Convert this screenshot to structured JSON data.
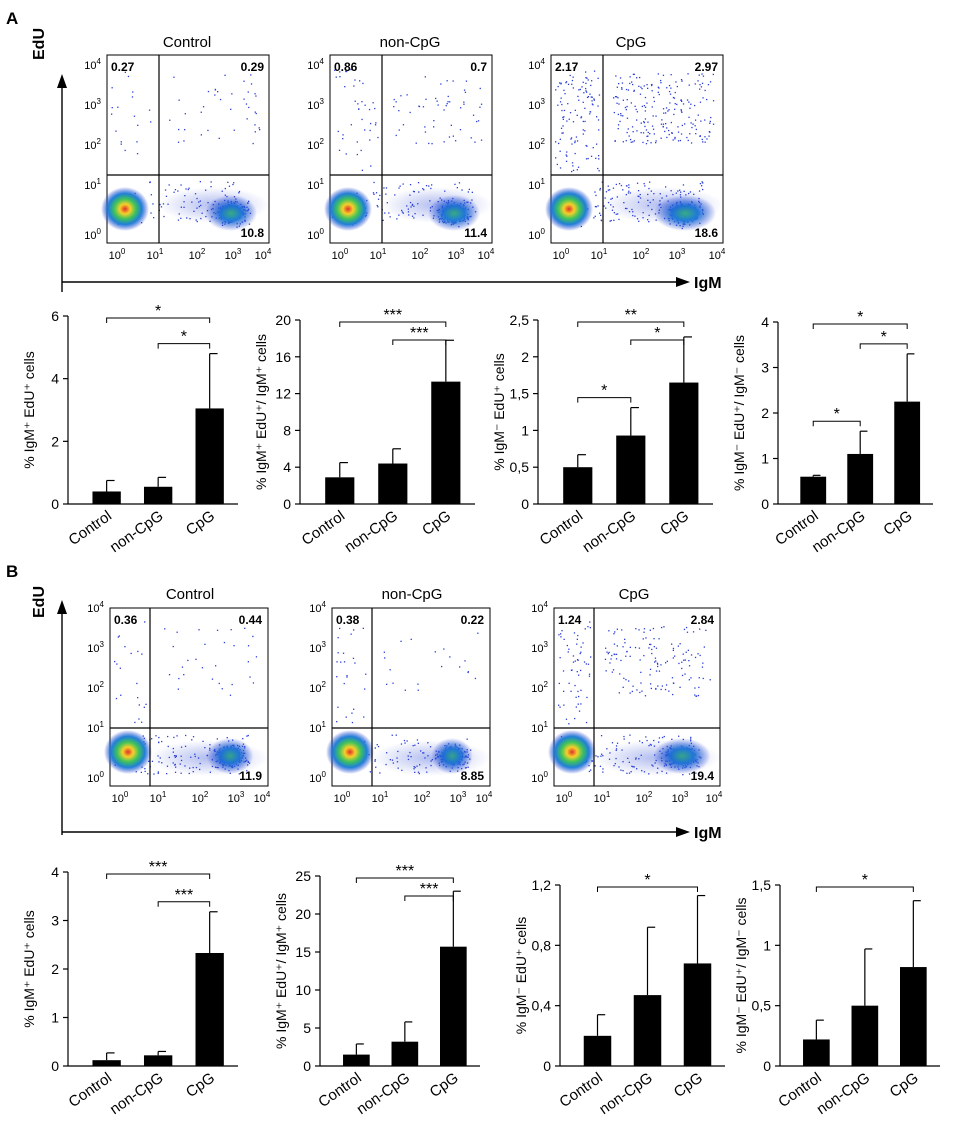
{
  "panels": [
    {
      "label": "A",
      "flow": {
        "ylabel": "EdU",
        "xlabel": "IgM",
        "ticks": [
          "10^0",
          "10^1",
          "10^2",
          "10^3",
          "10^4"
        ],
        "plots": [
          {
            "title": "Control",
            "quadrants": {
              "ul": "0.27",
              "ur": "0.29",
              "lr": "10.8"
            }
          },
          {
            "title": "non-CpG",
            "quadrants": {
              "ul": "0.86",
              "ur": "0.7",
              "lr": "11.4"
            }
          },
          {
            "title": "CpG",
            "quadrants": {
              "ul": "2.17",
              "ur": "2.97",
              "lr": "18.6"
            }
          }
        ]
      },
      "bars": [
        {
          "type": "bar",
          "ylabel": "% IgM⁺ EdU⁺ cells",
          "categories": [
            "Control",
            "non-CpG",
            "CpG"
          ],
          "values": [
            0.4,
            0.55,
            3.05
          ],
          "errors": [
            0.35,
            0.3,
            1.75
          ],
          "ylim": [
            0,
            6
          ],
          "yticks": [
            "0",
            "2",
            "4",
            "6"
          ],
          "sig": [
            {
              "from": 0,
              "to": 2,
              "stars": "*"
            },
            {
              "from": 1,
              "to": 2,
              "stars": "*"
            }
          ]
        },
        {
          "type": "bar",
          "ylabel": "% IgM⁺ EdU⁺/ IgM⁺ cells",
          "categories": [
            "Control",
            "non-CpG",
            "CpG"
          ],
          "values": [
            2.9,
            4.4,
            13.3
          ],
          "errors": [
            1.6,
            1.6,
            4.5
          ],
          "ylim": [
            0,
            20
          ],
          "yticks": [
            "0",
            "4",
            "8",
            "12",
            "16",
            "20"
          ],
          "sig": [
            {
              "from": 0,
              "to": 2,
              "stars": "***"
            },
            {
              "from": 1,
              "to": 2,
              "stars": "***"
            }
          ]
        },
        {
          "type": "bar",
          "ylabel": "% IgM⁻ EdU⁺ cells",
          "categories": [
            "Control",
            "non-CpG",
            "CpG"
          ],
          "values": [
            0.5,
            0.93,
            1.65
          ],
          "errors": [
            0.17,
            0.38,
            0.62
          ],
          "ylim": [
            0,
            2.5
          ],
          "yticks": [
            "0",
            "0,5",
            "1",
            "1,5",
            "2",
            "2,5"
          ],
          "sig": [
            {
              "from": 0,
              "to": 2,
              "stars": "**"
            },
            {
              "from": 0,
              "to": 1,
              "stars": "*"
            },
            {
              "from": 1,
              "to": 2,
              "stars": "*"
            }
          ]
        },
        {
          "type": "bar",
          "ylabel": "% IgM⁻ EdU⁺/ IgM⁻ cells",
          "categories": [
            "Control",
            "non-CpG",
            "CpG"
          ],
          "values": [
            0.6,
            1.1,
            2.25
          ],
          "errors": [
            0.03,
            0.5,
            1.05
          ],
          "ylim": [
            0,
            4
          ],
          "yticks": [
            "0",
            "1",
            "2",
            "3",
            "4"
          ],
          "sig": [
            {
              "from": 0,
              "to": 2,
              "stars": "*"
            },
            {
              "from": 0,
              "to": 1,
              "stars": "*"
            },
            {
              "from": 1,
              "to": 2,
              "stars": "*"
            }
          ]
        }
      ]
    },
    {
      "label": "B",
      "flow": {
        "ylabel": "EdU",
        "xlabel": "IgM",
        "ticks": [
          "10^0",
          "10^1",
          "10^2",
          "10^3",
          "10^4"
        ],
        "plots": [
          {
            "title": "Control",
            "quadrants": {
              "ul": "0.36",
              "ur": "0.44",
              "lr": "11.9"
            }
          },
          {
            "title": "non-CpG",
            "quadrants": {
              "ul": "0.38",
              "ur": "0.22",
              "lr": "8.85"
            }
          },
          {
            "title": "CpG",
            "quadrants": {
              "ul": "1.24",
              "ur": "2.84",
              "lr": "19.4"
            }
          }
        ]
      },
      "bars": [
        {
          "type": "bar",
          "ylabel": "% IgM⁺ EdU⁺ cells",
          "categories": [
            "Control",
            "non-CpG",
            "CpG"
          ],
          "values": [
            0.12,
            0.22,
            2.33
          ],
          "errors": [
            0.15,
            0.08,
            0.85
          ],
          "ylim": [
            0,
            4
          ],
          "yticks": [
            "0",
            "1",
            "2",
            "3",
            "4"
          ],
          "sig": [
            {
              "from": 0,
              "to": 2,
              "stars": "***"
            },
            {
              "from": 1,
              "to": 2,
              "stars": "***"
            }
          ]
        },
        {
          "type": "bar",
          "ylabel": "% IgM⁺ EdU⁺/ IgM⁺ cells",
          "categories": [
            "Control",
            "non-CpG",
            "CpG"
          ],
          "values": [
            1.5,
            3.2,
            15.7
          ],
          "errors": [
            1.4,
            2.6,
            7.3
          ],
          "ylim": [
            0,
            25
          ],
          "yticks": [
            "0",
            "5",
            "10",
            "15",
            "20",
            "25"
          ],
          "sig": [
            {
              "from": 0,
              "to": 2,
              "stars": "***"
            },
            {
              "from": 1,
              "to": 2,
              "stars": "***"
            }
          ]
        },
        {
          "type": "bar",
          "ylabel": "% IgM⁻ EdU⁺ cells",
          "categories": [
            "Control",
            "non-CpG",
            "CpG"
          ],
          "values": [
            0.2,
            0.47,
            0.68
          ],
          "errors": [
            0.14,
            0.45,
            0.45
          ],
          "ylim": [
            0,
            1.2
          ],
          "yticks": [
            "0",
            "0,4",
            "0,8",
            "1,2"
          ],
          "sig": [
            {
              "from": 0,
              "to": 2,
              "stars": "*"
            }
          ]
        },
        {
          "type": "bar",
          "ylabel": "% IgM⁻ EdU⁺/ IgM⁻ cells",
          "categories": [
            "Control",
            "non-CpG",
            "CpG"
          ],
          "values": [
            0.22,
            0.5,
            0.82
          ],
          "errors": [
            0.16,
            0.47,
            0.55
          ],
          "ylim": [
            0,
            1.5
          ],
          "yticks": [
            "0",
            "0,5",
            "1",
            "1,5"
          ],
          "sig": [
            {
              "from": 0,
              "to": 2,
              "stars": "*"
            }
          ]
        }
      ]
    }
  ]
}
